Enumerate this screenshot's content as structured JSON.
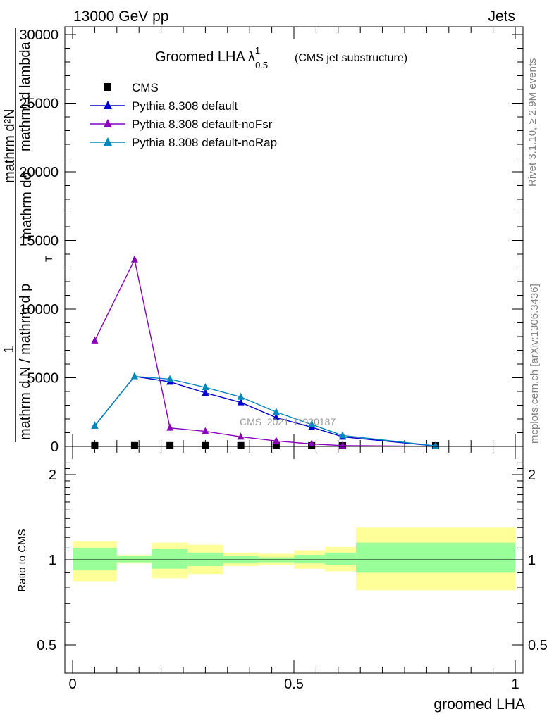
{
  "header": {
    "left": "13000 GeV pp",
    "right": "Jets"
  },
  "side_labels": {
    "rivet": "Rivet 3.1.10, ≥ 2.9M events",
    "mcplots": "mcplots.cern.ch [arXiv:1306.3436]"
  },
  "watermark": "CMS_2021_I1920187",
  "colors": {
    "cms": "#000000",
    "default": "#0000cc",
    "noFsr": "#8800bb",
    "noRap": "#0088bb",
    "band_inner": "#99ff99",
    "band_outer": "#ffff99"
  },
  "chart_data": [
    {
      "type": "line",
      "title": "Groomed LHA",
      "title_lambda": "λ",
      "title_sup": "1",
      "title_sub": "0.5",
      "title_suffix": "(CMS jet substructure)",
      "xlabel": "groomed LHA",
      "ylabel_parts": [
        "1",
        "mathrm d N / mathrm d p",
        "T",
        "mathrm dσ",
        "mathrm d lambda",
        "mathrm d²N"
      ],
      "xlim": [
        0,
        1
      ],
      "ylim": [
        0,
        30000
      ],
      "yticks": [
        0,
        5000,
        10000,
        15000,
        20000,
        25000,
        30000
      ],
      "ytick_labels": [
        "0",
        "5000",
        "10000",
        "15000",
        "20000",
        "25000",
        "30000"
      ],
      "legend_position": "top-left",
      "series": [
        {
          "name": "CMS",
          "marker": "square",
          "color": "#000000",
          "x": [
            0.05,
            0.14,
            0.22,
            0.3,
            0.38,
            0.46,
            0.54,
            0.61,
            0.82
          ],
          "y": [
            5,
            10,
            10,
            10,
            10,
            8,
            5,
            3,
            1
          ]
        },
        {
          "name": "Pythia 8.308 default",
          "marker": "triangle",
          "color": "#0000cc",
          "x": [
            0.05,
            0.14,
            0.22,
            0.3,
            0.38,
            0.46,
            0.54,
            0.61,
            0.82
          ],
          "y": [
            1500,
            5100,
            4700,
            3900,
            3200,
            2100,
            1400,
            700,
            30
          ]
        },
        {
          "name": "Pythia 8.308 default-noFsr",
          "marker": "triangle",
          "color": "#8800bb",
          "x": [
            0.05,
            0.14,
            0.22,
            0.3,
            0.38,
            0.46,
            0.54,
            0.61,
            0.82
          ],
          "y": [
            7700,
            13600,
            1350,
            1100,
            700,
            400,
            180,
            60,
            5
          ]
        },
        {
          "name": "Pythia 8.308 default-noRap",
          "marker": "triangle",
          "color": "#0088bb",
          "x": [
            0.05,
            0.14,
            0.22,
            0.3,
            0.38,
            0.46,
            0.54,
            0.61,
            0.82
          ],
          "y": [
            1500,
            5100,
            4900,
            4300,
            3600,
            2500,
            1600,
            800,
            40
          ]
        }
      ]
    },
    {
      "type": "area",
      "ylabel": "Ratio to CMS",
      "xlabel": "groomed LHA",
      "xlim": [
        0,
        1
      ],
      "ylim": [
        0.4,
        2.3
      ],
      "yscale": "log",
      "yticks": [
        0.5,
        1,
        2
      ],
      "ytick_labels": [
        "0.5",
        "1",
        "2"
      ],
      "xticks": [
        0,
        0.5,
        1
      ],
      "xtick_labels": [
        "0",
        "0.5",
        "1"
      ],
      "bins": [
        {
          "lo": 0.0,
          "hi": 0.1,
          "inner": [
            0.92,
            1.1
          ],
          "outer": [
            0.84,
            1.16
          ]
        },
        {
          "lo": 0.1,
          "hi": 0.18,
          "inner": [
            0.98,
            1.03
          ],
          "outer": [
            0.97,
            1.04
          ]
        },
        {
          "lo": 0.18,
          "hi": 0.26,
          "inner": [
            0.93,
            1.09
          ],
          "outer": [
            0.86,
            1.15
          ]
        },
        {
          "lo": 0.26,
          "hi": 0.34,
          "inner": [
            0.95,
            1.06
          ],
          "outer": [
            0.89,
            1.13
          ]
        },
        {
          "lo": 0.34,
          "hi": 0.42,
          "inner": [
            0.97,
            1.03
          ],
          "outer": [
            0.95,
            1.06
          ]
        },
        {
          "lo": 0.42,
          "hi": 0.5,
          "inner": [
            0.98,
            1.02
          ],
          "outer": [
            0.96,
            1.05
          ]
        },
        {
          "lo": 0.5,
          "hi": 0.57,
          "inner": [
            0.97,
            1.04
          ],
          "outer": [
            0.93,
            1.08
          ]
        },
        {
          "lo": 0.57,
          "hi": 0.64,
          "inner": [
            0.96,
            1.06
          ],
          "outer": [
            0.91,
            1.11
          ]
        },
        {
          "lo": 0.64,
          "hi": 1.0,
          "inner": [
            0.9,
            1.15
          ],
          "outer": [
            0.78,
            1.3
          ]
        }
      ],
      "reference_line": 1
    }
  ]
}
